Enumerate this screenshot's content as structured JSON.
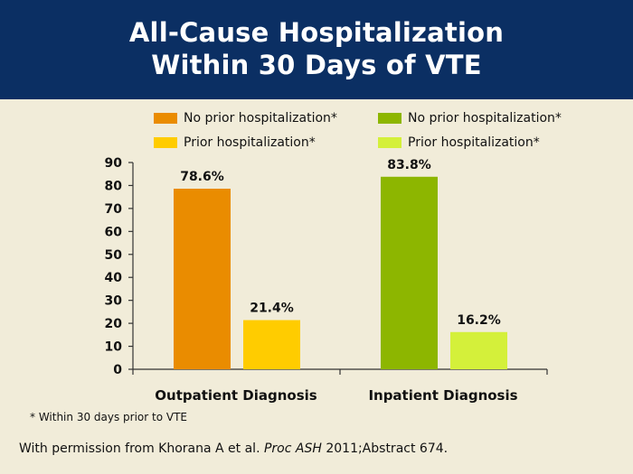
{
  "header": {
    "title_line1": "All-Cause Hospitalization",
    "title_line2": "Within 30 Days of VTE"
  },
  "chart_data": {
    "type": "bar",
    "title": "All-Cause Hospitalization Within 30 Days of VTE",
    "categories": [
      "Outpatient Diagnosis",
      "Inpatient Diagnosis"
    ],
    "series": [
      {
        "name": "No prior hospitalization*",
        "category": "Outpatient Diagnosis",
        "value": 78.6,
        "label": "78.6%",
        "color": "#ea8c00"
      },
      {
        "name": "Prior hospitalization*",
        "category": "Outpatient Diagnosis",
        "value": 21.4,
        "label": "21.4%",
        "color": "#ffcc00"
      },
      {
        "name": "No prior hospitalization*",
        "category": "Inpatient Diagnosis",
        "value": 83.8,
        "label": "83.8%",
        "color": "#8db600"
      },
      {
        "name": "Prior hospitalization*",
        "category": "Inpatient Diagnosis",
        "value": 16.2,
        "label": "16.2%",
        "color": "#d4f03a"
      }
    ],
    "ylim": [
      0,
      90
    ],
    "yticks": [
      "0",
      "10",
      "20",
      "30",
      "40",
      "50",
      "60",
      "70",
      "80",
      "90"
    ],
    "xlabel": "",
    "ylabel": ""
  },
  "legend": [
    {
      "label": "No prior hospitalization*",
      "color": "#ea8c00"
    },
    {
      "label": "No prior hospitalization*",
      "color": "#8db600"
    },
    {
      "label": "Prior hospitalization*",
      "color": "#ffcc00"
    },
    {
      "label": "Prior hospitalization*",
      "color": "#d4f03a"
    }
  ],
  "footnote": "* Within 30 days prior to VTE",
  "citation": {
    "prefix": "With permission from Khorana A et al. ",
    "journal": "Proc ASH",
    "suffix": " 2011;Abstract 674."
  }
}
